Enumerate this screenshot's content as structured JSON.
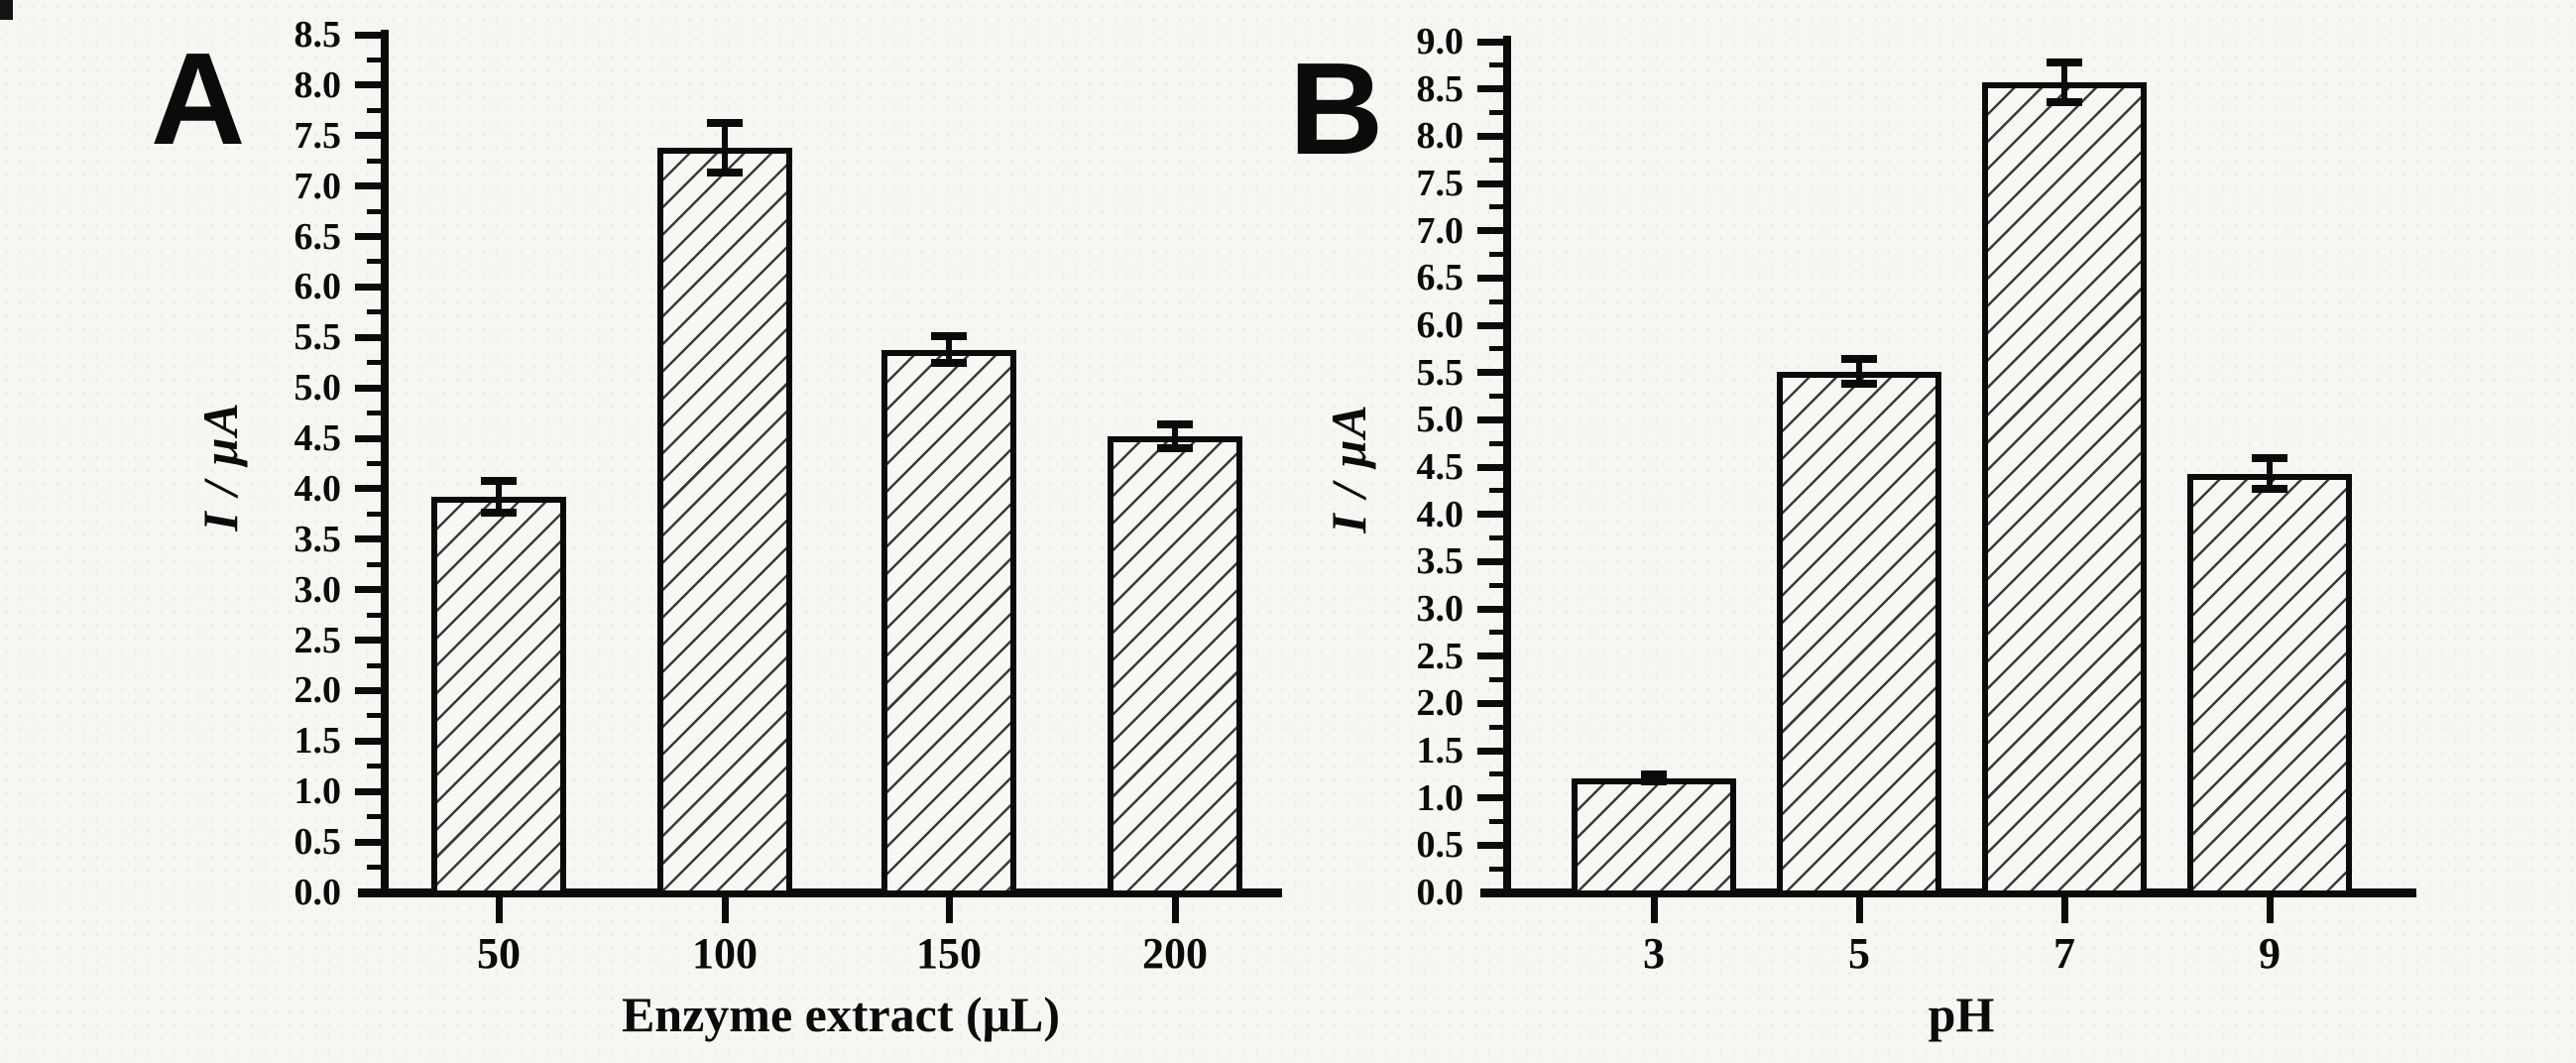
{
  "figure": {
    "background_color": "#f6f6f2",
    "ink_color": "#0b0b0b",
    "bar_style": "white with black diagonal hatch (/), black outline, black error bars"
  },
  "chart_data": [
    {
      "type": "bar",
      "panel_label": "A",
      "title": "",
      "xlabel": "Enzyme extract (μL)",
      "ylabel": "I / μA",
      "categories": [
        "50",
        "100",
        "150",
        "200"
      ],
      "values": [
        3.92,
        7.38,
        5.38,
        4.52
      ],
      "errors": [
        0.16,
        0.25,
        0.13,
        0.12
      ],
      "ylim": [
        0,
        8.5
      ],
      "ytick_step": 0.5,
      "yminor_step": 0.25,
      "grid": false,
      "legend": "none"
    },
    {
      "type": "bar",
      "panel_label": "B",
      "title": "",
      "xlabel": "pH",
      "ylabel": "I / μA",
      "categories": [
        "3",
        "5",
        "7",
        "9"
      ],
      "values": [
        1.21,
        5.51,
        8.57,
        4.43
      ],
      "errors": [
        0.04,
        0.13,
        0.21,
        0.16
      ],
      "ylim": [
        0,
        9.0
      ],
      "ytick_step": 0.5,
      "yminor_step": 0.25,
      "grid": false,
      "legend": "none"
    }
  ]
}
